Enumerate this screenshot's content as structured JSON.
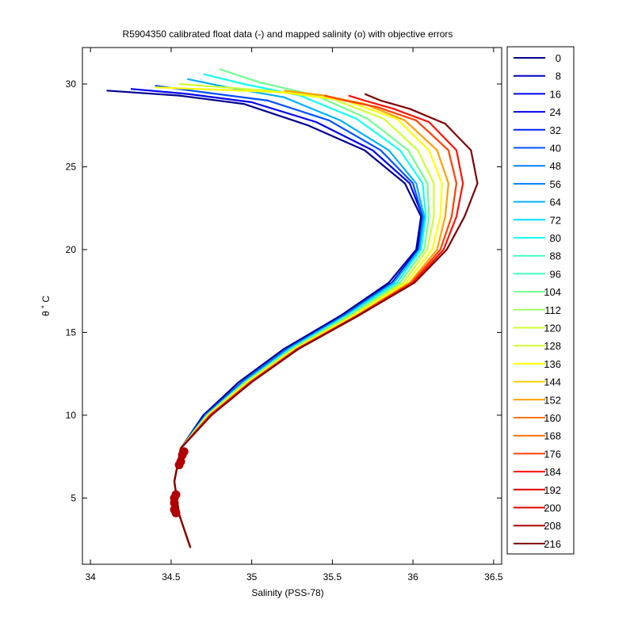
{
  "chart_data": {
    "type": "line",
    "title": "R5904350 calibrated float data (-) and mapped salinity (o) with objective errors",
    "xlabel": "Salinity (PSS-78)",
    "ylabel": "θ ˚ C",
    "xlim": [
      33.95,
      36.55
    ],
    "ylim": [
      1.0,
      32.2
    ],
    "xticks": [
      "34",
      "34.5",
      "35",
      "35.5",
      "36",
      "36.5"
    ],
    "xtick_values": [
      34,
      34.5,
      35,
      35.5,
      36,
      36.5
    ],
    "yticks": [
      "5",
      "10",
      "15",
      "20",
      "25",
      "30"
    ],
    "ytick_values": [
      5,
      10,
      15,
      20,
      25,
      30
    ],
    "grid": false,
    "legend_position": "right-outside",
    "legend": [
      "0",
      "8",
      "16",
      "24",
      "32",
      "40",
      "48",
      "56",
      "64",
      "72",
      "80",
      "88",
      "96",
      "104",
      "112",
      "120",
      "128",
      "136",
      "144",
      "152",
      "160",
      "168",
      "176",
      "184",
      "192",
      "200",
      "208",
      "216"
    ],
    "colors": [
      "#00008f",
      "#0000bf",
      "#0000ef",
      "#0020ff",
      "#0050ff",
      "#0080ff",
      "#00b0ff",
      "#00dfff",
      "#10ffef",
      "#40ffbf",
      "#70ff8f",
      "#9fff60",
      "#cfff30",
      "#ffff00",
      "#ffcf00",
      "#ff9f00",
      "#ff7000",
      "#ff4000",
      "#ff1000",
      "#df0000",
      "#af0000",
      "#800000"
    ],
    "series": [
      {
        "name": "0",
        "color": "#00008f",
        "x": [
          34.62,
          34.55,
          34.52,
          34.56,
          34.7,
          34.92,
          35.2,
          35.55,
          35.85,
          36.02,
          36.05,
          35.95,
          35.7,
          35.35,
          34.95,
          34.55,
          34.1
        ],
        "y": [
          2.0,
          4.0,
          6.0,
          8.0,
          10.0,
          12.0,
          14.0,
          16.0,
          18.0,
          20.0,
          22.0,
          24.0,
          26.0,
          27.5,
          28.8,
          29.3,
          29.6
        ]
      },
      {
        "name": "16",
        "color": "#0000ef",
        "x": [
          34.62,
          34.55,
          34.52,
          34.56,
          34.71,
          34.94,
          35.22,
          35.57,
          35.87,
          36.03,
          36.06,
          35.98,
          35.75,
          35.4,
          35.0,
          34.6,
          34.25
        ],
        "y": [
          2.0,
          4.0,
          6.0,
          8.0,
          10.0,
          12.0,
          14.0,
          16.0,
          18.0,
          20.0,
          22.0,
          24.0,
          26.0,
          27.7,
          28.9,
          29.4,
          29.7
        ]
      },
      {
        "name": "32",
        "color": "#0050ff",
        "x": [
          34.62,
          34.55,
          34.52,
          34.56,
          34.71,
          34.94,
          35.22,
          35.57,
          35.88,
          36.04,
          36.06,
          36.0,
          35.8,
          35.48,
          35.1,
          34.7,
          34.4
        ],
        "y": [
          2.0,
          4.0,
          6.0,
          8.0,
          10.0,
          12.0,
          14.0,
          16.0,
          18.0,
          20.0,
          22.0,
          24.0,
          26.0,
          27.8,
          29.0,
          29.5,
          29.9
        ]
      },
      {
        "name": "56",
        "color": "#00b0ff",
        "x": [
          34.62,
          34.55,
          34.52,
          34.56,
          34.72,
          34.95,
          35.23,
          35.58,
          35.88,
          36.04,
          36.07,
          36.02,
          35.85,
          35.55,
          35.2,
          34.85,
          34.6
        ],
        "y": [
          2.0,
          4.0,
          6.0,
          8.0,
          10.0,
          12.0,
          14.0,
          16.0,
          18.0,
          20.0,
          22.0,
          24.0,
          26.0,
          27.8,
          29.2,
          29.8,
          30.3
        ]
      },
      {
        "name": "80",
        "color": "#10ffef",
        "x": [
          34.62,
          34.55,
          34.52,
          34.56,
          34.72,
          34.96,
          35.24,
          35.59,
          35.9,
          36.05,
          36.08,
          36.06,
          35.92,
          35.65,
          35.3,
          34.95,
          34.7
        ],
        "y": [
          2.0,
          4.0,
          6.0,
          8.0,
          10.0,
          12.0,
          14.0,
          16.0,
          18.0,
          20.0,
          22.0,
          24.0,
          26.0,
          27.9,
          29.3,
          30.0,
          30.6
        ]
      },
      {
        "name": "104",
        "color": "#70ff8f",
        "x": [
          34.62,
          34.55,
          34.52,
          34.56,
          34.72,
          34.96,
          35.25,
          35.6,
          35.92,
          36.07,
          36.1,
          36.09,
          35.97,
          35.72,
          35.4,
          35.05,
          34.8
        ],
        "y": [
          2.0,
          4.0,
          6.0,
          8.0,
          10.0,
          12.0,
          14.0,
          16.0,
          18.0,
          20.0,
          22.0,
          24.0,
          26.0,
          27.9,
          29.3,
          30.1,
          30.9
        ]
      },
      {
        "name": "128",
        "color": "#cfff30",
        "x": [
          34.62,
          34.55,
          34.52,
          34.56,
          34.73,
          34.97,
          35.26,
          35.62,
          35.94,
          36.09,
          36.13,
          36.13,
          36.03,
          35.82,
          35.5,
          35.1,
          34.55
        ],
        "y": [
          2.0,
          4.0,
          6.0,
          8.0,
          10.0,
          12.0,
          14.0,
          16.0,
          18.0,
          20.0,
          22.0,
          24.0,
          26.0,
          27.9,
          29.1,
          29.6,
          30.0
        ]
      },
      {
        "name": "144",
        "color": "#ffff00",
        "x": [
          34.62,
          34.55,
          34.52,
          34.56,
          34.73,
          34.98,
          35.27,
          35.63,
          35.96,
          36.12,
          36.17,
          36.18,
          36.1,
          35.9,
          35.58,
          35.2,
          34.4
        ],
        "y": [
          2.0,
          4.0,
          6.0,
          8.0,
          10.0,
          12.0,
          14.0,
          16.0,
          18.0,
          20.0,
          22.0,
          24.0,
          26.0,
          27.9,
          29.0,
          29.5,
          29.8
        ]
      },
      {
        "name": "160",
        "color": "#ff9f00",
        "x": [
          34.62,
          34.55,
          34.52,
          34.56,
          34.74,
          34.99,
          35.28,
          35.65,
          35.98,
          36.15,
          36.2,
          36.22,
          36.15,
          35.95,
          35.7,
          35.45,
          35.2
        ],
        "y": [
          2.0,
          4.0,
          6.0,
          8.0,
          10.0,
          12.0,
          14.0,
          16.0,
          18.0,
          20.0,
          22.0,
          24.0,
          26.0,
          27.8,
          28.8,
          29.3,
          29.6
        ]
      },
      {
        "name": "176",
        "color": "#ff4000",
        "x": [
          34.62,
          34.55,
          34.52,
          34.56,
          34.74,
          34.99,
          35.28,
          35.65,
          35.99,
          36.17,
          36.24,
          36.27,
          36.22,
          36.02,
          35.78,
          35.58,
          35.45
        ],
        "y": [
          2.0,
          4.0,
          6.0,
          8.0,
          10.0,
          12.0,
          14.0,
          16.0,
          18.0,
          20.0,
          22.0,
          24.0,
          26.0,
          27.8,
          28.6,
          29.0,
          29.3
        ]
      },
      {
        "name": "192",
        "color": "#ff1000",
        "x": [
          34.62,
          34.55,
          34.52,
          34.56,
          34.75,
          35.0,
          35.29,
          35.66,
          36.0,
          36.19,
          36.27,
          36.31,
          36.27,
          36.1,
          35.88,
          35.7,
          35.6
        ],
        "y": [
          2.0,
          4.0,
          6.0,
          8.0,
          10.0,
          12.0,
          14.0,
          16.0,
          18.0,
          20.0,
          22.0,
          24.0,
          26.0,
          27.7,
          28.5,
          29.0,
          29.3
        ]
      },
      {
        "name": "216",
        "color": "#800000",
        "x": [
          34.62,
          34.55,
          34.52,
          34.56,
          34.75,
          35.0,
          35.29,
          35.66,
          36.01,
          36.21,
          36.32,
          36.4,
          36.36,
          36.2,
          35.98,
          35.8,
          35.7
        ],
        "y": [
          2.0,
          4.0,
          6.0,
          8.0,
          10.0,
          12.0,
          14.0,
          16.0,
          18.0,
          20.0,
          22.0,
          24.0,
          26.0,
          27.6,
          28.5,
          29.0,
          29.4
        ]
      }
    ],
    "mapped_points": {
      "x": [
        34.58,
        34.57,
        34.56,
        34.55,
        34.53,
        34.52,
        34.52,
        34.52,
        34.53
      ],
      "y": [
        7.8,
        7.6,
        7.2,
        7.0,
        5.2,
        5.0,
        4.7,
        4.3,
        4.1
      ],
      "color": "#b00000"
    }
  }
}
